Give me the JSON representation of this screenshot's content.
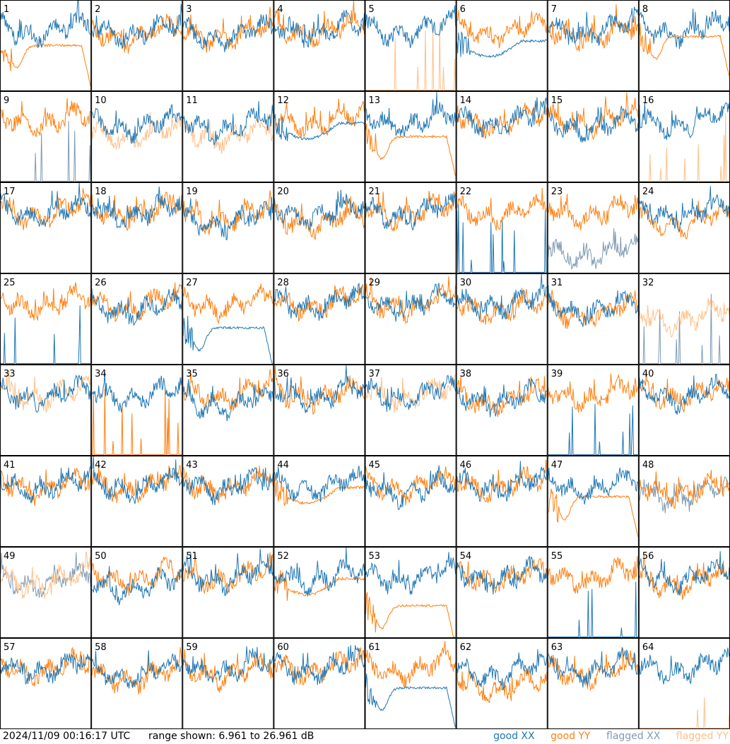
{
  "colors": {
    "good_xx": "#1f77b4",
    "good_yy": "#ff7f0e",
    "flagged_xx": "#7f9bb3",
    "flagged_yy": "#ffbf87",
    "frame": "#000000",
    "background": "#ffffff"
  },
  "footer": {
    "timestamp": "2024/11/09 00:16:17 UTC",
    "range": "range shown: 6.961 to 26.961 dB",
    "legend": {
      "good_xx": "good XX",
      "good_yy": "good YY",
      "flagged_xx": "flagged XX",
      "flagged_yy": "flagged YY"
    }
  },
  "chart_data": {
    "type": "line",
    "layout": "8x8 small multiples",
    "ylim": [
      6.961,
      26.961
    ],
    "y_unit": "dB",
    "panels": [
      {
        "id": "1",
        "xx": "good",
        "yy": "good",
        "xx_shape": "normal",
        "yy_shape": "smooth_drop",
        "xx_level": 22,
        "yy_level": 17
      },
      {
        "id": "2",
        "xx": "good",
        "yy": "good",
        "xx_shape": "normal",
        "yy_shape": "normal",
        "xx_level": 22,
        "yy_level": 21
      },
      {
        "id": "3",
        "xx": "good",
        "yy": "good",
        "xx_shape": "normal",
        "yy_shape": "normal",
        "xx_level": 21,
        "yy_level": 21
      },
      {
        "id": "4",
        "xx": "good",
        "yy": "good",
        "xx_shape": "normal",
        "yy_shape": "normal",
        "xx_level": 22,
        "yy_level": 22
      },
      {
        "id": "5",
        "xx": "good",
        "yy": "flagged",
        "xx_shape": "normal",
        "yy_shape": "spikes",
        "xx_level": 22,
        "yy_level": 8
      },
      {
        "id": "6",
        "xx": "good",
        "yy": "good",
        "xx_shape": "smooth",
        "yy_shape": "normal",
        "xx_level": 18,
        "yy_level": 22
      },
      {
        "id": "7",
        "xx": "good",
        "yy": "good",
        "xx_shape": "normal",
        "yy_shape": "normal",
        "xx_level": 22,
        "yy_level": 21
      },
      {
        "id": "8",
        "xx": "good",
        "yy": "good",
        "xx_shape": "normal",
        "yy_shape": "smooth_drop",
        "xx_level": 22,
        "yy_level": 19
      },
      {
        "id": "9",
        "xx": "flagged",
        "yy": "good",
        "xx_shape": "spikes",
        "yy_shape": "normal",
        "xx_level": 8,
        "yy_level": 22
      },
      {
        "id": "10",
        "xx": "good",
        "yy": "flagged",
        "xx_shape": "normal",
        "yy_shape": "normal",
        "xx_level": 21,
        "yy_level": 19
      },
      {
        "id": "11",
        "xx": "good",
        "yy": "flagged",
        "xx_shape": "normal",
        "yy_shape": "normal",
        "xx_level": 21,
        "yy_level": 19
      },
      {
        "id": "12",
        "xx": "good",
        "yy": "good",
        "xx_shape": "smooth",
        "yy_shape": "normal",
        "xx_level": 20,
        "yy_level": 22
      },
      {
        "id": "13",
        "xx": "good",
        "yy": "good",
        "xx_shape": "normal",
        "yy_shape": "smooth_drop",
        "xx_level": 22,
        "yy_level": 17
      },
      {
        "id": "14",
        "xx": "good",
        "yy": "good",
        "xx_shape": "normal",
        "yy_shape": "normal",
        "xx_level": 22,
        "yy_level": 22
      },
      {
        "id": "15",
        "xx": "good",
        "yy": "good",
        "xx_shape": "normal",
        "yy_shape": "normal",
        "xx_level": 21,
        "yy_level": 22
      },
      {
        "id": "16",
        "xx": "good",
        "yy": "flagged",
        "xx_shape": "normal",
        "yy_shape": "spikes",
        "xx_level": 22,
        "yy_level": 8
      },
      {
        "id": "17",
        "xx": "good",
        "yy": "good",
        "xx_shape": "normal",
        "yy_shape": "normal",
        "xx_level": 22,
        "yy_level": 22
      },
      {
        "id": "18",
        "xx": "good",
        "yy": "good",
        "xx_shape": "normal",
        "yy_shape": "normal",
        "xx_level": 22,
        "yy_level": 22
      },
      {
        "id": "19",
        "xx": "good",
        "yy": "good",
        "xx_shape": "normal",
        "yy_shape": "normal",
        "xx_level": 20,
        "yy_level": 21
      },
      {
        "id": "20",
        "xx": "good",
        "yy": "good",
        "xx_shape": "normal",
        "yy_shape": "normal",
        "xx_level": 22,
        "yy_level": 20
      },
      {
        "id": "21",
        "xx": "good",
        "yy": "good",
        "xx_shape": "normal",
        "yy_shape": "normal",
        "xx_level": 22,
        "yy_level": 22
      },
      {
        "id": "22",
        "xx": "good",
        "yy": "good",
        "xx_shape": "spikes",
        "yy_shape": "normal",
        "xx_level": 8,
        "yy_level": 22
      },
      {
        "id": "23",
        "xx": "flagged",
        "yy": "good",
        "xx_shape": "normal",
        "yy_shape": "normal",
        "xx_level": 13,
        "yy_level": 22
      },
      {
        "id": "24",
        "xx": "good",
        "yy": "good",
        "xx_shape": "normal",
        "yy_shape": "normal",
        "xx_level": 22,
        "yy_level": 20
      },
      {
        "id": "25",
        "xx": "good",
        "yy": "good",
        "xx_shape": "spikes",
        "yy_shape": "normal",
        "xx_level": 8,
        "yy_level": 22
      },
      {
        "id": "26",
        "xx": "good",
        "yy": "good",
        "xx_shape": "normal",
        "yy_shape": "normal",
        "xx_level": 21,
        "yy_level": 22
      },
      {
        "id": "27",
        "xx": "good",
        "yy": "good",
        "xx_shape": "smooth_drop",
        "yy_shape": "normal",
        "xx_level": 15,
        "yy_level": 22
      },
      {
        "id": "28",
        "xx": "good",
        "yy": "good",
        "xx_shape": "normal",
        "yy_shape": "normal",
        "xx_level": 22,
        "yy_level": 22
      },
      {
        "id": "29",
        "xx": "good",
        "yy": "good",
        "xx_shape": "normal",
        "yy_shape": "normal",
        "xx_level": 22,
        "yy_level": 22
      },
      {
        "id": "30",
        "xx": "good",
        "yy": "good",
        "xx_shape": "normal",
        "yy_shape": "normal",
        "xx_level": 22,
        "yy_level": 21
      },
      {
        "id": "31",
        "xx": "good",
        "yy": "good",
        "xx_shape": "normal",
        "yy_shape": "normal",
        "xx_level": 21,
        "yy_level": 20
      },
      {
        "id": "32",
        "xx": "flagged",
        "yy": "flagged",
        "xx_shape": "spikes",
        "yy_shape": "normal",
        "xx_level": 8,
        "yy_level": 19
      },
      {
        "id": "33",
        "xx": "good",
        "yy": "flagged",
        "xx_shape": "normal",
        "yy_shape": "normal",
        "xx_level": 22,
        "yy_level": 22
      },
      {
        "id": "34",
        "xx": "good",
        "yy": "good",
        "xx_shape": "normal",
        "yy_shape": "spikes",
        "xx_level": 22,
        "yy_level": 8
      },
      {
        "id": "35",
        "xx": "good",
        "yy": "good",
        "xx_shape": "normal",
        "yy_shape": "normal",
        "xx_level": 20,
        "yy_level": 22
      },
      {
        "id": "36",
        "xx": "good",
        "yy": "good",
        "xx_shape": "normal",
        "yy_shape": "normal",
        "xx_level": 22,
        "yy_level": 22
      },
      {
        "id": "37",
        "xx": "good",
        "yy": "flagged",
        "xx_shape": "normal",
        "yy_shape": "normal",
        "xx_level": 22,
        "yy_level": 22
      },
      {
        "id": "38",
        "xx": "good",
        "yy": "good",
        "xx_shape": "normal",
        "yy_shape": "normal",
        "xx_level": 21,
        "yy_level": 21
      },
      {
        "id": "39",
        "xx": "good",
        "yy": "good",
        "xx_shape": "spikes",
        "yy_shape": "normal",
        "xx_level": 8,
        "yy_level": 22
      },
      {
        "id": "40",
        "xx": "good",
        "yy": "good",
        "xx_shape": "normal",
        "yy_shape": "normal",
        "xx_level": 22,
        "yy_level": 22
      },
      {
        "id": "41",
        "xx": "good",
        "yy": "good",
        "xx_shape": "normal",
        "yy_shape": "normal",
        "xx_level": 22,
        "yy_level": 22
      },
      {
        "id": "42",
        "xx": "good",
        "yy": "good",
        "xx_shape": "normal",
        "yy_shape": "normal",
        "xx_level": 22,
        "yy_level": 22
      },
      {
        "id": "43",
        "xx": "good",
        "yy": "good",
        "xx_shape": "normal",
        "yy_shape": "normal",
        "xx_level": 22,
        "yy_level": 22
      },
      {
        "id": "44",
        "xx": "good",
        "yy": "good",
        "xx_shape": "normal",
        "yy_shape": "smooth",
        "xx_level": 22,
        "yy_level": 20
      },
      {
        "id": "45",
        "xx": "good",
        "yy": "good",
        "xx_shape": "normal",
        "yy_shape": "normal",
        "xx_level": 21,
        "yy_level": 22
      },
      {
        "id": "46",
        "xx": "good",
        "yy": "good",
        "xx_shape": "normal",
        "yy_shape": "normal",
        "xx_level": 22,
        "yy_level": 22
      },
      {
        "id": "47",
        "xx": "good",
        "yy": "good",
        "xx_shape": "normal",
        "yy_shape": "smooth_drop",
        "xx_level": 22,
        "yy_level": 18
      },
      {
        "id": "48",
        "xx": "flagged",
        "yy": "good",
        "xx_shape": "normal",
        "yy_shape": "normal",
        "xx_level": 20,
        "yy_level": 21
      },
      {
        "id": "49",
        "xx": "flagged",
        "yy": "flagged",
        "xx_shape": "normal",
        "yy_shape": "normal",
        "xx_level": 21,
        "yy_level": 21
      },
      {
        "id": "50",
        "xx": "good",
        "yy": "good",
        "xx_shape": "normal",
        "yy_shape": "normal",
        "xx_level": 20,
        "yy_level": 22
      },
      {
        "id": "51",
        "xx": "good",
        "yy": "good",
        "xx_shape": "normal",
        "yy_shape": "normal",
        "xx_level": 22,
        "yy_level": 22
      },
      {
        "id": "52",
        "xx": "good",
        "yy": "good",
        "xx_shape": "normal",
        "yy_shape": "smooth",
        "xx_level": 22,
        "yy_level": 20
      },
      {
        "id": "53",
        "xx": "good",
        "yy": "good",
        "xx_shape": "normal",
        "yy_shape": "smooth_drop",
        "xx_level": 22,
        "yy_level": 14
      },
      {
        "id": "54",
        "xx": "good",
        "yy": "good",
        "xx_shape": "normal",
        "yy_shape": "normal",
        "xx_level": 22,
        "yy_level": 22
      },
      {
        "id": "55",
        "xx": "good",
        "yy": "good",
        "xx_shape": "spikes",
        "yy_shape": "normal",
        "xx_level": 9,
        "yy_level": 22
      },
      {
        "id": "56",
        "xx": "good",
        "yy": "good",
        "xx_shape": "normal",
        "yy_shape": "normal",
        "xx_level": 22,
        "yy_level": 21
      },
      {
        "id": "57",
        "xx": "good",
        "yy": "good",
        "xx_shape": "normal",
        "yy_shape": "normal",
        "xx_level": 22,
        "yy_level": 22
      },
      {
        "id": "58",
        "xx": "good",
        "yy": "good",
        "xx_shape": "normal",
        "yy_shape": "normal",
        "xx_level": 21,
        "yy_level": 20
      },
      {
        "id": "59",
        "xx": "good",
        "yy": "good",
        "xx_shape": "normal",
        "yy_shape": "normal",
        "xx_level": 22,
        "yy_level": 21
      },
      {
        "id": "60",
        "xx": "good",
        "yy": "good",
        "xx_shape": "normal",
        "yy_shape": "normal",
        "xx_level": 22,
        "yy_level": 22
      },
      {
        "id": "61",
        "xx": "good",
        "yy": "good",
        "xx_shape": "smooth_drop",
        "yy_shape": "normal",
        "xx_level": 16,
        "yy_level": 22
      },
      {
        "id": "62",
        "xx": "good",
        "yy": "good",
        "xx_shape": "normal",
        "yy_shape": "normal",
        "xx_level": 21,
        "yy_level": 18
      },
      {
        "id": "63",
        "xx": "good",
        "yy": "good",
        "xx_shape": "normal",
        "yy_shape": "normal",
        "xx_level": 22,
        "yy_level": 21
      },
      {
        "id": "64",
        "xx": "good",
        "yy": "flagged",
        "xx_shape": "normal",
        "yy_shape": "spikes",
        "xx_level": 22,
        "yy_level": 8
      }
    ]
  }
}
